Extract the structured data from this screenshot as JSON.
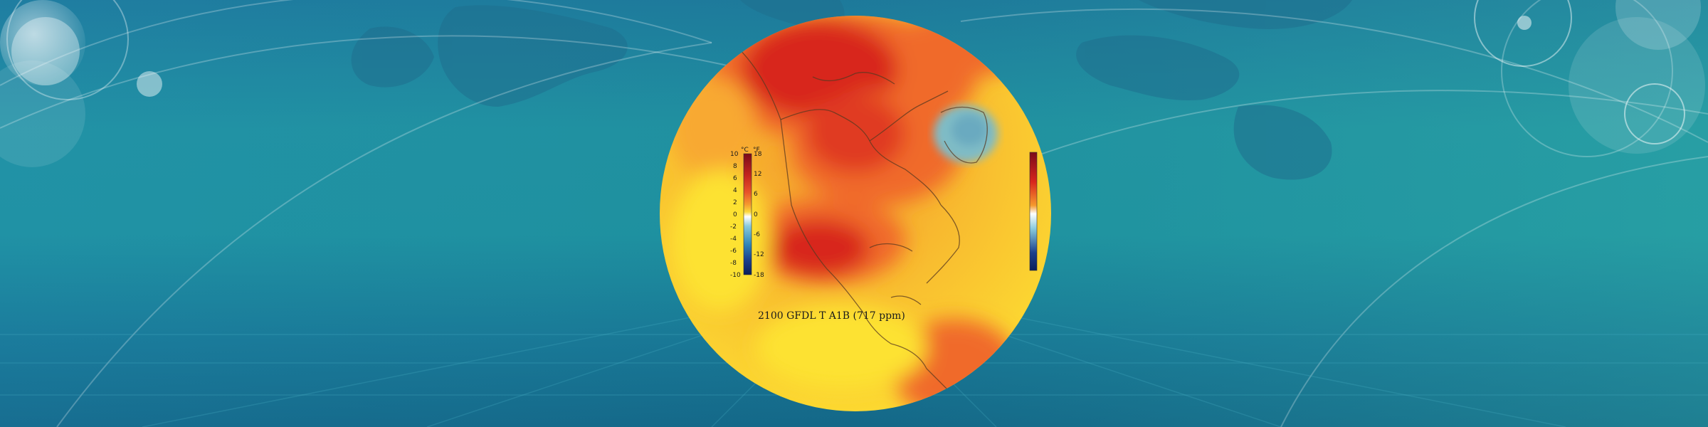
{
  "banner": {
    "caption": "2100 GFDL T A1B (717 ppm)"
  },
  "legend": {
    "celsius_unit": "°C",
    "fahrenheit_unit": "°F",
    "celsius_ticks": [
      "10",
      "8",
      "6",
      "4",
      "2",
      "0",
      "-2",
      "-4",
      "-6",
      "-8",
      "-10"
    ],
    "fahrenheit_ticks": [
      "18",
      "12",
      "6",
      "0",
      "-6",
      "-12",
      "-18"
    ],
    "colors": [
      "#7a0b1a",
      "#c4251e",
      "#e8542a",
      "#f59a2e",
      "#fbd83a",
      "#ffffff",
      "#88c9dc",
      "#2f86b8",
      "#1b3f8c",
      "#0c1f5a"
    ]
  },
  "globe": {
    "colors": {
      "hot": "#d8261d",
      "warm": "#f06a2a",
      "mild": "#f8a930",
      "cool": "#fde232",
      "cold_anomaly": "#7fbcc6",
      "coastline": "#5a3a20"
    }
  }
}
